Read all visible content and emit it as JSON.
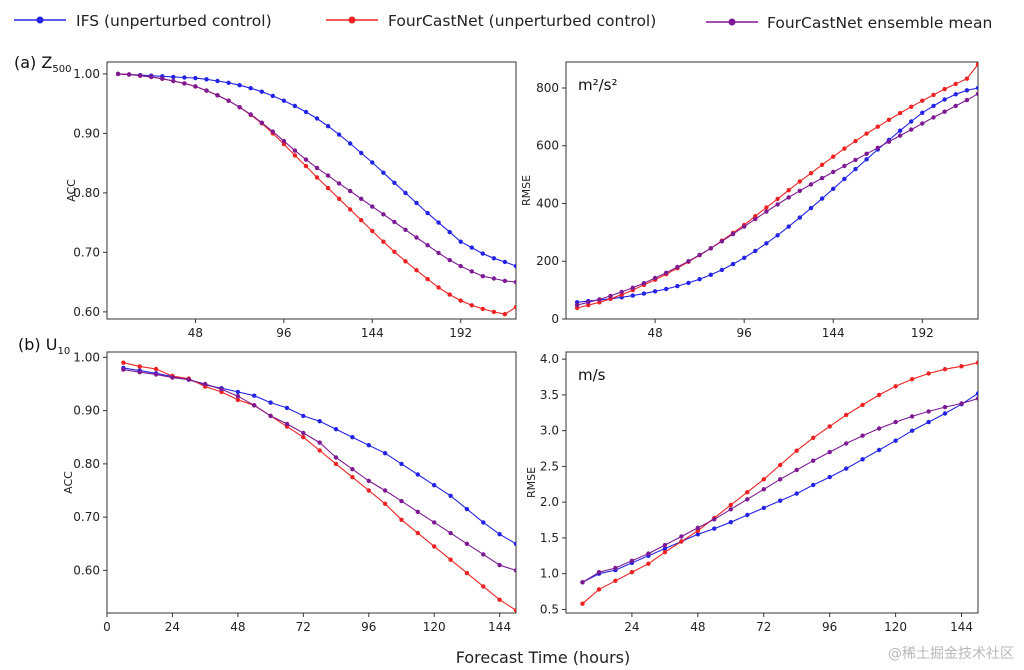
{
  "figure": {
    "xlabel": "Forecast Time (hours)",
    "row_labels": [
      {
        "prefix": "(a) ",
        "var": "Z",
        "sub": "500"
      },
      {
        "prefix": "(b) ",
        "var": "U",
        "sub": "10"
      }
    ],
    "watermark": "@稀土掘金技术社区"
  },
  "legend": [
    {
      "label": "IFS (unperturbed control)",
      "color": "#2323e6"
    },
    {
      "label": "FourCastNet (unperturbed control)",
      "color": "#ee2222"
    },
    {
      "label": "FourCastNet ensemble mean",
      "color": "#7d1a93"
    }
  ],
  "chart_data": [
    {
      "type": "line",
      "panel": "a-acc",
      "ylabel": "ACC",
      "unit": "",
      "xlim": [
        0,
        222
      ],
      "ylim": [
        0.588,
        1.02
      ],
      "xticks": [
        48,
        96,
        144,
        192
      ],
      "yticks": [
        0.6,
        0.7,
        0.8,
        0.9,
        1.0
      ],
      "x": [
        6,
        12,
        18,
        24,
        30,
        36,
        42,
        48,
        54,
        60,
        66,
        72,
        78,
        84,
        90,
        96,
        102,
        108,
        114,
        120,
        126,
        132,
        138,
        144,
        150,
        156,
        162,
        168,
        174,
        180,
        186,
        192,
        198,
        204,
        210,
        216,
        222
      ],
      "series": [
        {
          "name": "IFS (unperturbed control)",
          "color": "#2323e6",
          "values": [
            1.0,
            0.999,
            0.998,
            0.997,
            0.996,
            0.995,
            0.994,
            0.993,
            0.991,
            0.988,
            0.985,
            0.981,
            0.976,
            0.97,
            0.963,
            0.955,
            0.946,
            0.936,
            0.925,
            0.912,
            0.898,
            0.883,
            0.867,
            0.851,
            0.834,
            0.817,
            0.8,
            0.783,
            0.766,
            0.75,
            0.734,
            0.718,
            0.708,
            0.698,
            0.69,
            0.684,
            0.677
          ]
        },
        {
          "name": "FourCastNet (unperturbed control)",
          "color": "#ee2222",
          "values": [
            1.0,
            0.999,
            0.997,
            0.995,
            0.992,
            0.988,
            0.984,
            0.979,
            0.972,
            0.964,
            0.955,
            0.944,
            0.931,
            0.917,
            0.9,
            0.882,
            0.863,
            0.845,
            0.826,
            0.808,
            0.79,
            0.772,
            0.754,
            0.736,
            0.718,
            0.701,
            0.685,
            0.67,
            0.655,
            0.641,
            0.629,
            0.619,
            0.611,
            0.605,
            0.6,
            0.596,
            0.608
          ]
        },
        {
          "name": "FourCastNet ensemble mean",
          "color": "#7d1a93",
          "values": [
            1.0,
            0.999,
            0.997,
            0.995,
            0.992,
            0.988,
            0.984,
            0.979,
            0.972,
            0.964,
            0.955,
            0.944,
            0.932,
            0.918,
            0.903,
            0.887,
            0.871,
            0.856,
            0.842,
            0.829,
            0.816,
            0.803,
            0.79,
            0.777,
            0.764,
            0.751,
            0.738,
            0.725,
            0.712,
            0.699,
            0.687,
            0.677,
            0.668,
            0.66,
            0.656,
            0.652,
            0.65
          ]
        }
      ]
    },
    {
      "type": "line",
      "panel": "a-rmse",
      "ylabel": "RMSE",
      "unit": "m²/s²",
      "xlim": [
        0,
        222
      ],
      "ylim": [
        0,
        890
      ],
      "xticks": [
        48,
        96,
        144,
        192
      ],
      "yticks": [
        0,
        200,
        400,
        600,
        800
      ],
      "x": [
        6,
        12,
        18,
        24,
        30,
        36,
        42,
        48,
        54,
        60,
        66,
        72,
        78,
        84,
        90,
        96,
        102,
        108,
        114,
        120,
        126,
        132,
        138,
        144,
        150,
        156,
        162,
        168,
        174,
        180,
        186,
        192,
        198,
        204,
        210,
        216,
        222
      ],
      "series": [
        {
          "name": "IFS (unperturbed control)",
          "color": "#2323e6",
          "values": [
            58,
            62,
            66,
            70,
            75,
            81,
            88,
            96,
            104,
            114,
            125,
            138,
            153,
            170,
            190,
            212,
            236,
            262,
            290,
            320,
            351,
            384,
            417,
            451,
            485,
            519,
            553,
            587,
            620,
            652,
            684,
            714,
            738,
            760,
            778,
            792,
            800
          ]
        },
        {
          "name": "FourCastNet (unperturbed control)",
          "color": "#ee2222",
          "values": [
            38,
            48,
            58,
            70,
            84,
            100,
            118,
            136,
            155,
            176,
            198,
            221,
            245,
            271,
            298,
            326,
            356,
            386,
            416,
            446,
            476,
            505,
            534,
            562,
            590,
            616,
            642,
            666,
            690,
            713,
            735,
            756,
            776,
            796,
            814,
            832,
            882
          ]
        },
        {
          "name": "FourCastNet ensemble mean",
          "color": "#7d1a93",
          "values": [
            48,
            58,
            68,
            80,
            94,
            108,
            124,
            142,
            160,
            180,
            200,
            222,
            245,
            269,
            294,
            320,
            346,
            372,
            397,
            421,
            444,
            466,
            488,
            509,
            530,
            551,
            572,
            593,
            614,
            635,
            656,
            677,
            698,
            718,
            738,
            758,
            780
          ]
        }
      ]
    },
    {
      "type": "line",
      "panel": "b-acc",
      "ylabel": "ACC",
      "unit": "",
      "xlim": [
        0,
        150
      ],
      "ylim": [
        0.52,
        1.01
      ],
      "xticks": [
        0,
        24,
        48,
        72,
        96,
        120,
        144
      ],
      "yticks": [
        0.6,
        0.7,
        0.8,
        0.9,
        1.0
      ],
      "x": [
        6,
        12,
        18,
        24,
        30,
        36,
        42,
        48,
        54,
        60,
        66,
        72,
        78,
        84,
        90,
        96,
        102,
        108,
        114,
        120,
        126,
        132,
        138,
        144,
        150
      ],
      "series": [
        {
          "name": "IFS (unperturbed control)",
          "color": "#2323e6",
          "values": [
            0.98,
            0.975,
            0.97,
            0.964,
            0.958,
            0.948,
            0.942,
            0.935,
            0.928,
            0.915,
            0.905,
            0.89,
            0.88,
            0.865,
            0.85,
            0.835,
            0.82,
            0.8,
            0.78,
            0.76,
            0.74,
            0.715,
            0.69,
            0.668,
            0.65
          ]
        },
        {
          "name": "FourCastNet (unperturbed control)",
          "color": "#ee2222",
          "values": [
            0.99,
            0.983,
            0.978,
            0.965,
            0.96,
            0.945,
            0.935,
            0.92,
            0.91,
            0.89,
            0.87,
            0.85,
            0.825,
            0.8,
            0.775,
            0.75,
            0.725,
            0.695,
            0.67,
            0.645,
            0.62,
            0.595,
            0.57,
            0.545,
            0.525
          ]
        },
        {
          "name": "FourCastNet ensemble mean",
          "color": "#7d1a93",
          "values": [
            0.977,
            0.972,
            0.968,
            0.962,
            0.958,
            0.95,
            0.94,
            0.927,
            0.91,
            0.89,
            0.875,
            0.858,
            0.84,
            0.812,
            0.79,
            0.768,
            0.75,
            0.73,
            0.71,
            0.69,
            0.67,
            0.65,
            0.63,
            0.61,
            0.6
          ]
        }
      ]
    },
    {
      "type": "line",
      "panel": "b-rmse",
      "ylabel": "RMSE",
      "unit": "m/s",
      "xlim": [
        0,
        150
      ],
      "ylim": [
        0.45,
        4.1
      ],
      "xticks": [
        24,
        48,
        72,
        96,
        120,
        144
      ],
      "yticks": [
        0.5,
        1.0,
        1.5,
        2.0,
        2.5,
        3.0,
        3.5,
        4.0
      ],
      "x": [
        6,
        12,
        18,
        24,
        30,
        36,
        42,
        48,
        54,
        60,
        66,
        72,
        78,
        84,
        90,
        96,
        102,
        108,
        114,
        120,
        126,
        132,
        138,
        144,
        150
      ],
      "series": [
        {
          "name": "IFS (unperturbed control)",
          "color": "#2323e6",
          "values": [
            0.88,
            1.0,
            1.05,
            1.15,
            1.25,
            1.35,
            1.45,
            1.55,
            1.63,
            1.72,
            1.82,
            1.92,
            2.02,
            2.12,
            2.24,
            2.35,
            2.47,
            2.6,
            2.73,
            2.86,
            3.0,
            3.12,
            3.24,
            3.37,
            3.52
          ]
        },
        {
          "name": "FourCastNet (unperturbed control)",
          "color": "#ee2222",
          "values": [
            0.58,
            0.78,
            0.9,
            1.02,
            1.14,
            1.3,
            1.45,
            1.6,
            1.78,
            1.96,
            2.14,
            2.32,
            2.52,
            2.72,
            2.9,
            3.06,
            3.22,
            3.36,
            3.5,
            3.62,
            3.72,
            3.8,
            3.86,
            3.9,
            3.95
          ]
        },
        {
          "name": "FourCastNet ensemble mean",
          "color": "#7d1a93",
          "values": [
            0.88,
            1.02,
            1.08,
            1.18,
            1.28,
            1.4,
            1.52,
            1.64,
            1.76,
            1.9,
            2.04,
            2.18,
            2.32,
            2.45,
            2.58,
            2.7,
            2.82,
            2.93,
            3.03,
            3.12,
            3.2,
            3.27,
            3.33,
            3.38,
            3.45
          ]
        }
      ]
    }
  ]
}
